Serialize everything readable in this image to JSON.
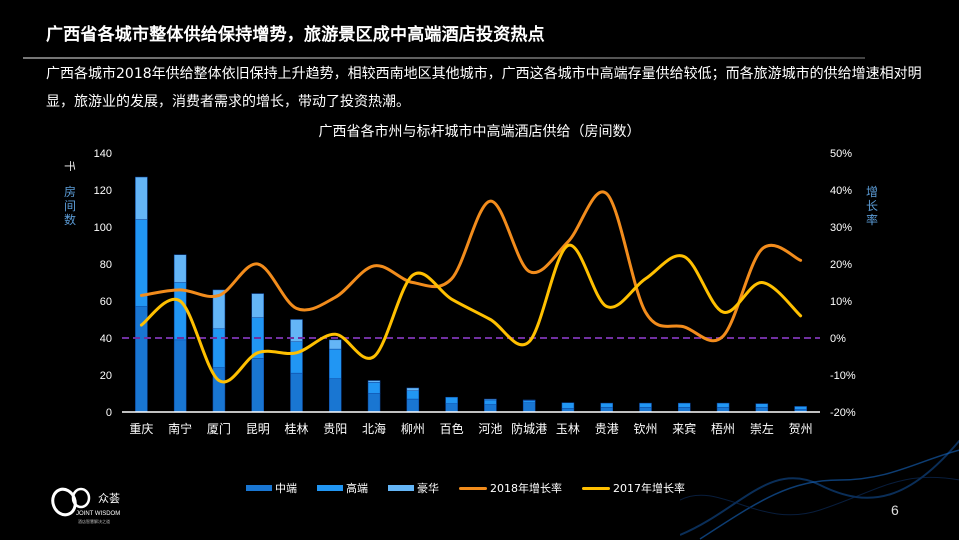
{
  "slide": {
    "title": "广西省各城市整体供给保持增势，旅游景区成中高端酒店投资热点",
    "description": "广西各城市2018年供给整体依旧保持上升趋势，相较西南地区其他城市，广西这各城市中高端存量供给较低；而各旅游城市的供给增速相对明显，旅游业的发展，消费者需求的增长，带动了投资热潮。",
    "page_number": "6",
    "logo": {
      "name": "众荟",
      "english": "JOINT WISDOM",
      "tagline": "酒店智慧解决之道"
    }
  },
  "chart_data": {
    "type": "bar",
    "title": "广西省各市州与标杆城市中高端酒店供给（房间数）",
    "left_axis": {
      "unit": "千",
      "label": "房间数",
      "ticks": [
        0,
        20,
        40,
        60,
        80,
        100,
        120,
        140
      ],
      "ylim": [
        0,
        140
      ]
    },
    "right_axis": {
      "label": "增长率",
      "ticks": [
        "-20%",
        "-10%",
        "0%",
        "10%",
        "20%",
        "30%",
        "40%",
        "50%"
      ],
      "ylim": [
        -20,
        50
      ]
    },
    "categories": [
      "重庆",
      "南宁",
      "厦门",
      "昆明",
      "桂林",
      "贵阳",
      "北海",
      "柳州",
      "百色",
      "河池",
      "防城港",
      "玉林",
      "贵港",
      "钦州",
      "来宾",
      "梧州",
      "崇左",
      "贺州"
    ],
    "series": [
      {
        "name": "中端",
        "type": "bar",
        "stack": true,
        "color": "#1976D2",
        "values": [
          57,
          39,
          24,
          29,
          21,
          18,
          10,
          7,
          4.5,
          4,
          5,
          2,
          2.5,
          2.5,
          2.5,
          2.5,
          2.5,
          1.5
        ]
      },
      {
        "name": "高端",
        "type": "bar",
        "stack": true,
        "color": "#2196F3",
        "values": [
          47,
          31,
          21,
          22,
          17,
          16,
          6,
          4.5,
          3.5,
          2.5,
          1.2,
          3,
          2.3,
          2.3,
          2.3,
          2.3,
          2,
          1.5
        ]
      },
      {
        "name": "豪华",
        "type": "bar",
        "stack": true,
        "color": "#64B5F6",
        "values": [
          23,
          15,
          21,
          13,
          12,
          5,
          1,
          1.5,
          0,
          0.5,
          0.3,
          0,
          0,
          0,
          0,
          0,
          0,
          0
        ]
      },
      {
        "name": "2018年增长率",
        "type": "line",
        "axis": "right",
        "color": "#F28C1C",
        "values": [
          11.5,
          13,
          11.5,
          20,
          8,
          11,
          19.5,
          15,
          16,
          37,
          18,
          26,
          39,
          7,
          3,
          0.5,
          24,
          21
        ]
      },
      {
        "name": "2017年增长率",
        "type": "line",
        "axis": "right",
        "color": "#FFC000",
        "values": [
          3.5,
          10,
          -11.5,
          -4,
          -4,
          1,
          -5,
          17,
          10.5,
          5,
          -1,
          25,
          8.5,
          16,
          22,
          7,
          15,
          6
        ]
      }
    ],
    "reference_line": {
      "value": "0%",
      "style": "dashed",
      "color": "#7030A0"
    },
    "legend": {
      "position": "bottom",
      "items": [
        "中端",
        "高端",
        "豪华",
        "2018年增长率",
        "2017年增长率"
      ]
    },
    "grid": false
  }
}
